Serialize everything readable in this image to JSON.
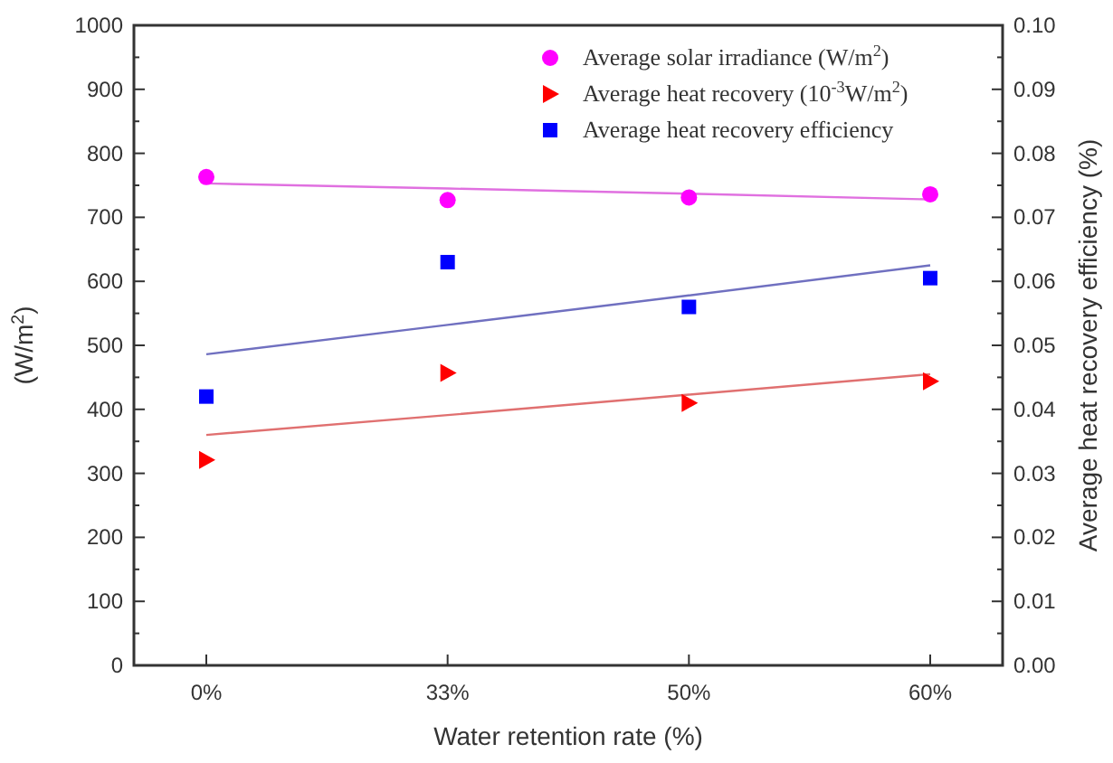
{
  "chart_data": {
    "type": "scatter",
    "xlabel": "Water retention rate (%)",
    "ylabel": "(W/m$^{2}$)",
    "y2label": "Average heat recovery efficiency (%)",
    "categories": [
      "0%",
      "33%",
      "50%",
      "60%"
    ],
    "ylim": [
      0,
      1000
    ],
    "yticks": [
      0,
      {
        "value": 50,
        "label": null
      },
      100,
      {
        "value": 150,
        "label": null
      },
      200,
      {
        "value": 250,
        "label": null
      },
      300,
      {
        "value": 350,
        "label": null
      },
      400,
      {
        "value": 450,
        "label": null
      },
      500,
      {
        "value": 550,
        "label": null
      },
      600,
      {
        "value": 650,
        "label": null
      },
      700,
      {
        "value": 750,
        "label": null
      },
      800,
      {
        "value": 850,
        "label": null
      },
      900,
      {
        "value": 950,
        "label": null
      },
      1000
    ],
    "y2lim": [
      0,
      0.1
    ],
    "y2ticks": [
      {
        "value": 0,
        "label": "0.00"
      },
      {
        "value": 0.005,
        "label": null
      },
      {
        "value": 0.01,
        "label": "0.01"
      },
      {
        "value": 0.015,
        "label": null
      },
      {
        "value": 0.02,
        "label": "0.02"
      },
      {
        "value": 0.025,
        "label": null
      },
      {
        "value": 0.03,
        "label": "0.03"
      },
      {
        "value": 0.035,
        "label": null
      },
      {
        "value": 0.04,
        "label": "0.04"
      },
      {
        "value": 0.045,
        "label": null
      },
      {
        "value": 0.05,
        "label": "0.05"
      },
      {
        "value": 0.055,
        "label": null
      },
      {
        "value": 0.06,
        "label": "0.06"
      },
      {
        "value": 0.065,
        "label": null
      },
      {
        "value": 0.07,
        "label": "0.07"
      },
      {
        "value": 0.075,
        "label": null
      },
      {
        "value": 0.08,
        "label": "0.08"
      },
      {
        "value": 0.085,
        "label": null
      },
      {
        "value": 0.09,
        "label": "0.09"
      },
      {
        "value": 0.095,
        "label": null
      },
      {
        "value": 0.1,
        "label": "0.10"
      }
    ],
    "grid": false,
    "legend": "top right",
    "series": [
      {
        "type": "line",
        "color": "#e070e0",
        "values": [
          753,
          745,
          737,
          728
        ]
      },
      {
        "type": "line",
        "color": "#e07070",
        "values": [
          360,
          391,
          423,
          455
        ]
      },
      {
        "type": "line",
        "color": "#7070c0",
        "axis": "y2",
        "values": [
          0.0486,
          0.0532,
          0.0578,
          0.0625
        ]
      },
      {
        "name": "Average solar irradiance (W/m$^{2}$)",
        "color": "#ff00ff",
        "marker": "circle",
        "values": [
          763,
          727,
          731,
          736
        ]
      },
      {
        "name": "Average heat recovery (10$^{-3}$W/m$^{2}$)",
        "color": "#ff0000",
        "marker": "triangle",
        "values": [
          321,
          457,
          410,
          444
        ]
      },
      {
        "name": "Average heat recovery efficiency",
        "color": "#0000ff",
        "marker": "square",
        "axis": "y2",
        "values": [
          0.042,
          0.063,
          0.056,
          0.0605
        ]
      }
    ]
  }
}
